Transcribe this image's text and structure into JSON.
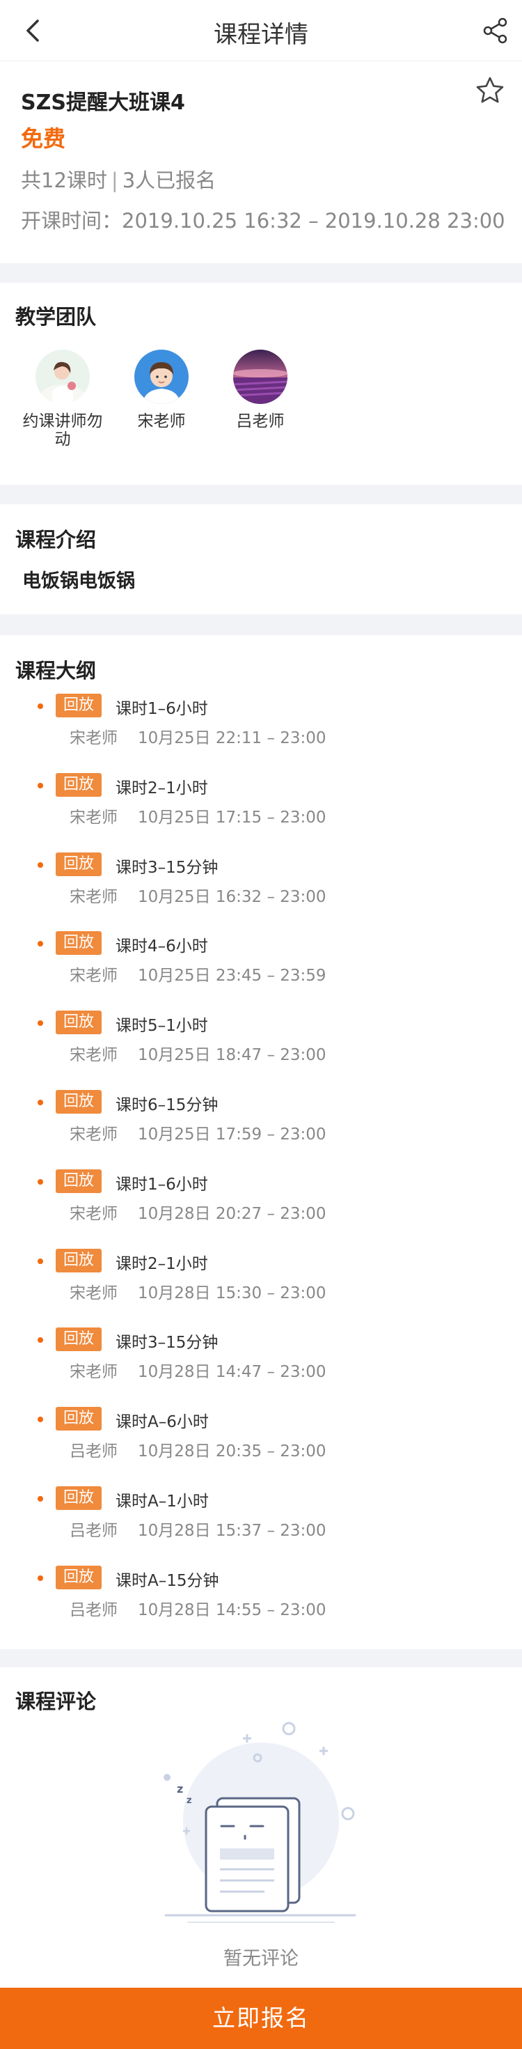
{
  "header": {
    "title": "课程详情"
  },
  "course": {
    "title": "SZS提醒大班课4",
    "price": "免费",
    "lessons_count": "共12课时",
    "enrolled": "3人已报名",
    "time_label": "开课时间：",
    "time_range": "2019.10.25 16:32 – 2019.10.28 23:00"
  },
  "team": {
    "title": "教学团队",
    "teachers": [
      {
        "name": "约课讲师勿动"
      },
      {
        "name": "宋老师"
      },
      {
        "name": "吕老师"
      }
    ]
  },
  "intro": {
    "title": "课程介绍",
    "body": "电饭锅电饭锅"
  },
  "syllabus": {
    "title": "课程大纲",
    "tag": "回放",
    "lessons": [
      {
        "name": "课时1–6小时",
        "teacher": "宋老师",
        "time": "10月25日 22:11 – 23:00"
      },
      {
        "name": "课时2–1小时",
        "teacher": "宋老师",
        "time": "10月25日 17:15 – 23:00"
      },
      {
        "name": "课时3–15分钟",
        "teacher": "宋老师",
        "time": "10月25日 16:32 – 23:00"
      },
      {
        "name": "课时4–6小时",
        "teacher": "宋老师",
        "time": "10月25日 23:45 – 23:59"
      },
      {
        "name": "课时5–1小时",
        "teacher": "宋老师",
        "time": "10月25日 18:47 – 23:00"
      },
      {
        "name": "课时6–15分钟",
        "teacher": "宋老师",
        "time": "10月25日 17:59 – 23:00"
      },
      {
        "name": "课时1–6小时",
        "teacher": "宋老师",
        "time": "10月28日 20:27 – 23:00"
      },
      {
        "name": "课时2–1小时",
        "teacher": "宋老师",
        "time": "10月28日 15:30 – 23:00"
      },
      {
        "name": "课时3–15分钟",
        "teacher": "宋老师",
        "time": "10月28日 14:47 – 23:00"
      },
      {
        "name": "课时A–6小时",
        "teacher": "吕老师",
        "time": "10月28日 20:35 – 23:00"
      },
      {
        "name": "课时A–1小时",
        "teacher": "吕老师",
        "time": "10月28日 15:37 – 23:00"
      },
      {
        "name": "课时A–15分钟",
        "teacher": "吕老师",
        "time": "10月28日 14:55 – 23:00"
      }
    ]
  },
  "comments": {
    "title": "课程评论",
    "empty_text": "暂无评论"
  },
  "footer": {
    "enroll_label": "立即报名"
  },
  "colors": {
    "accent": "#f26a0f",
    "tag": "#f08a3c",
    "gap": "#f2f3f7"
  },
  "icons": {
    "back": "chevron-left-icon",
    "share": "share-icon",
    "favorite": "star-outline-icon"
  }
}
